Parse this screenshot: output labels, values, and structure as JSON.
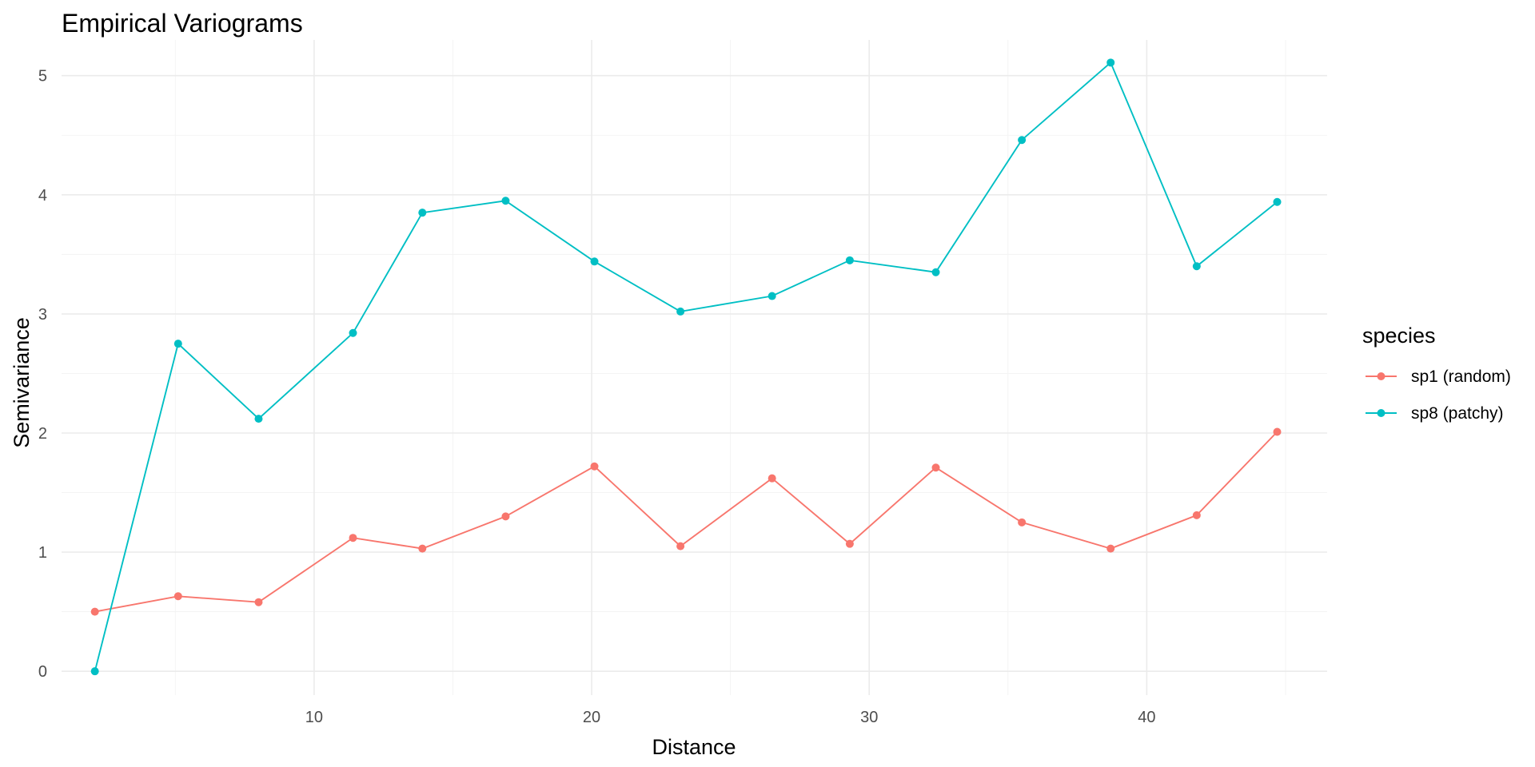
{
  "chart_data": {
    "type": "line",
    "title": "Empirical Variograms",
    "xlabel": "Distance",
    "ylabel": "Semivariance",
    "xlim": [
      0.9,
      46.5
    ],
    "ylim": [
      -0.2,
      5.3
    ],
    "x_ticks": [
      10,
      20,
      30,
      40
    ],
    "y_ticks": [
      0,
      1,
      2,
      3,
      4,
      5
    ],
    "x_minor": [
      5,
      15,
      25,
      35,
      45
    ],
    "y_minor": [
      0.5,
      1.5,
      2.5,
      3.5,
      4.5
    ],
    "grid": true,
    "legend": {
      "title": "species",
      "position": "right"
    },
    "x": [
      2.1,
      5.1,
      8.0,
      11.4,
      13.9,
      16.9,
      20.1,
      23.2,
      26.5,
      29.3,
      32.4,
      35.5,
      38.7,
      41.8,
      44.7
    ],
    "series": [
      {
        "name": "sp1 (random)",
        "color": "#F8766D",
        "values": [
          0.5,
          0.63,
          0.58,
          1.12,
          1.03,
          1.3,
          1.72,
          1.05,
          1.62,
          1.07,
          1.71,
          1.25,
          1.03,
          1.31,
          2.01
        ]
      },
      {
        "name": "sp8 (patchy)",
        "color": "#00BFC4",
        "values": [
          0.0,
          2.75,
          2.12,
          2.84,
          3.85,
          3.95,
          3.44,
          3.02,
          3.15,
          3.45,
          3.35,
          4.46,
          5.11,
          3.4,
          3.94
        ]
      }
    ]
  }
}
